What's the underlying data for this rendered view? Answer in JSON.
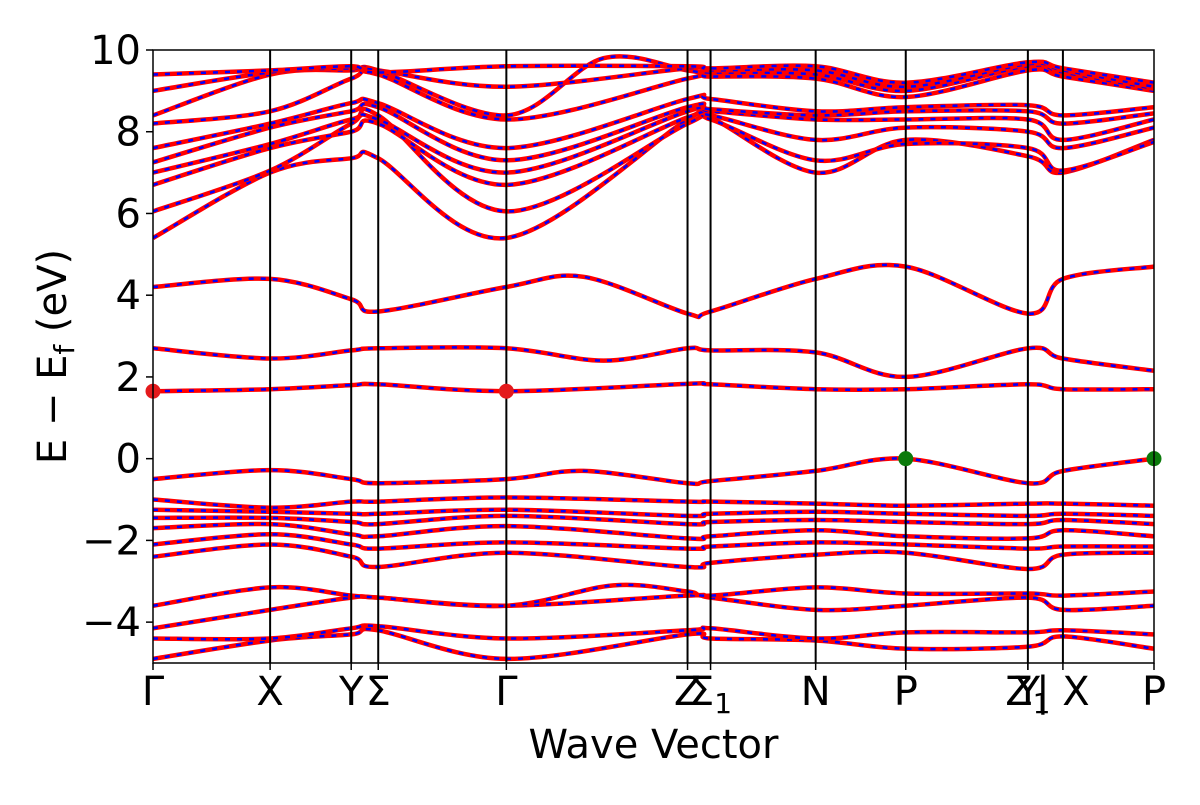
{
  "chart_data": {
    "type": "line",
    "title": "",
    "xlabel": "Wave Vector",
    "ylabel": "E − E_f (eV)",
    "ylabel_parts": {
      "main": "E − E",
      "sub": "f",
      "unit": "(eV)"
    },
    "ylim": [
      -5,
      10
    ],
    "xlim": [
      0,
      10
    ],
    "yticks": [
      -4,
      -2,
      0,
      2,
      4,
      6,
      8,
      10
    ],
    "ytick_labels": [
      "−4",
      "−2",
      "0",
      "2",
      "4",
      "6",
      "8",
      "10"
    ],
    "kpoints": [
      {
        "x": 0.0,
        "label": "Γ",
        "sub": ""
      },
      {
        "x": 1.17,
        "label": "X",
        "sub": ""
      },
      {
        "x": 1.98,
        "label": "Y",
        "sub": ""
      },
      {
        "x": 2.25,
        "label": "Σ",
        "sub": ""
      },
      {
        "x": 3.53,
        "label": "Γ",
        "sub": ""
      },
      {
        "x": 5.34,
        "label": "Z",
        "sub": ""
      },
      {
        "x": 5.57,
        "label": "Σ",
        "sub": "1"
      },
      {
        "x": 6.62,
        "label": "N",
        "sub": ""
      },
      {
        "x": 7.52,
        "label": "P",
        "sub": ""
      },
      {
        "x": 8.74,
        "label": "Y",
        "sub": ""
      },
      {
        "x": 8.74,
        "label": "Z",
        "sub": "1"
      },
      {
        "x": 9.09,
        "label": "| X",
        "sub": ""
      },
      {
        "x": 10.0,
        "label": "P",
        "sub": ""
      }
    ],
    "series": [
      {
        "color_main": "#ff0000",
        "color_overlay": "#0000ff",
        "style": "spin-up solid / spin-down dashed overlay"
      }
    ],
    "bands": [
      [
        [
          0,
          -4.9
        ],
        [
          1.17,
          -4.45
        ],
        [
          1.98,
          -4.3
        ],
        [
          2.25,
          -4.2
        ],
        [
          3.53,
          -4.9
        ],
        [
          5.34,
          -4.3
        ],
        [
          5.57,
          -4.4
        ],
        [
          6.62,
          -4.45
        ],
        [
          7.52,
          -4.65
        ],
        [
          8.74,
          -4.6
        ],
        [
          9.09,
          -4.35
        ],
        [
          10,
          -4.65
        ]
      ],
      [
        [
          0,
          -4.4
        ],
        [
          1.17,
          -4.4
        ],
        [
          1.98,
          -4.15
        ],
        [
          2.25,
          -4.1
        ],
        [
          3.53,
          -4.4
        ],
        [
          5.34,
          -4.2
        ],
        [
          5.57,
          -4.15
        ],
        [
          6.62,
          -4.4
        ],
        [
          7.52,
          -4.25
        ],
        [
          8.74,
          -4.25
        ],
        [
          9.09,
          -4.2
        ],
        [
          10,
          -4.3
        ]
      ],
      [
        [
          0,
          -4.15
        ],
        [
          1.17,
          -3.7
        ],
        [
          1.98,
          -3.4
        ],
        [
          2.25,
          -3.4
        ],
        [
          3.53,
          -3.6
        ],
        [
          5.34,
          -3.35
        ],
        [
          5.57,
          -3.4
        ],
        [
          6.62,
          -3.7
        ],
        [
          7.52,
          -3.6
        ],
        [
          8.74,
          -3.4
        ],
        [
          9.09,
          -3.7
        ],
        [
          10,
          -3.6
        ]
      ],
      [
        [
          0,
          -3.6
        ],
        [
          1.17,
          -3.15
        ],
        [
          1.98,
          -3.35
        ],
        [
          2.25,
          -3.4
        ],
        [
          3.53,
          -3.6
        ],
        [
          4.6,
          -3.1
        ],
        [
          5.34,
          -3.25
        ],
        [
          5.57,
          -3.35
        ],
        [
          6.62,
          -3.15
        ],
        [
          7.52,
          -3.3
        ],
        [
          8.74,
          -3.3
        ],
        [
          9.09,
          -3.35
        ],
        [
          10,
          -3.25
        ]
      ],
      [
        [
          0,
          -2.4
        ],
        [
          1.17,
          -2.1
        ],
        [
          1.98,
          -2.4
        ],
        [
          2.25,
          -2.65
        ],
        [
          3.53,
          -2.3
        ],
        [
          5.34,
          -2.65
        ],
        [
          5.57,
          -2.55
        ],
        [
          6.62,
          -2.35
        ],
        [
          7.52,
          -2.3
        ],
        [
          8.74,
          -2.7
        ],
        [
          9.09,
          -2.35
        ],
        [
          10,
          -2.3
        ]
      ],
      [
        [
          0,
          -2.1
        ],
        [
          1.17,
          -1.85
        ],
        [
          1.98,
          -2.1
        ],
        [
          2.25,
          -2.2
        ],
        [
          3.53,
          -2.05
        ],
        [
          5.34,
          -2.2
        ],
        [
          5.57,
          -2.15
        ],
        [
          6.62,
          -2.05
        ],
        [
          7.52,
          -2.1
        ],
        [
          8.74,
          -2.2
        ],
        [
          9.09,
          -2.15
        ],
        [
          10,
          -2.15
        ]
      ],
      [
        [
          0,
          -1.7
        ],
        [
          1.17,
          -1.6
        ],
        [
          1.98,
          -1.85
        ],
        [
          2.25,
          -1.9
        ],
        [
          3.53,
          -1.65
        ],
        [
          5.34,
          -1.95
        ],
        [
          5.57,
          -1.9
        ],
        [
          6.62,
          -1.75
        ],
        [
          7.52,
          -1.9
        ],
        [
          8.74,
          -1.95
        ],
        [
          9.09,
          -1.75
        ],
        [
          10,
          -1.9
        ]
      ],
      [
        [
          0,
          -1.45
        ],
        [
          1.17,
          -1.45
        ],
        [
          1.98,
          -1.55
        ],
        [
          2.25,
          -1.6
        ],
        [
          3.53,
          -1.4
        ],
        [
          5.34,
          -1.6
        ],
        [
          5.57,
          -1.55
        ],
        [
          6.62,
          -1.5
        ],
        [
          7.52,
          -1.55
        ],
        [
          8.74,
          -1.6
        ],
        [
          9.09,
          -1.5
        ],
        [
          10,
          -1.6
        ]
      ],
      [
        [
          0,
          -1.25
        ],
        [
          1.17,
          -1.3
        ],
        [
          1.98,
          -1.35
        ],
        [
          2.25,
          -1.35
        ],
        [
          3.53,
          -1.25
        ],
        [
          5.34,
          -1.4
        ],
        [
          5.57,
          -1.35
        ],
        [
          6.62,
          -1.3
        ],
        [
          7.52,
          -1.35
        ],
        [
          8.74,
          -1.4
        ],
        [
          9.09,
          -1.35
        ],
        [
          10,
          -1.4
        ]
      ],
      [
        [
          0,
          -1.0
        ],
        [
          1.17,
          -1.2
        ],
        [
          1.98,
          -1.05
        ],
        [
          2.25,
          -1.05
        ],
        [
          3.53,
          -0.95
        ],
        [
          5.34,
          -1.05
        ],
        [
          5.57,
          -1.05
        ],
        [
          6.62,
          -1.1
        ],
        [
          7.52,
          -1.15
        ],
        [
          8.74,
          -1.1
        ],
        [
          9.09,
          -1.1
        ],
        [
          10,
          -1.15
        ]
      ],
      [
        [
          0,
          -0.5
        ],
        [
          1.17,
          -0.28
        ],
        [
          1.98,
          -0.5
        ],
        [
          2.25,
          -0.6
        ],
        [
          3.53,
          -0.5
        ],
        [
          4.3,
          -0.3
        ],
        [
          5.34,
          -0.6
        ],
        [
          5.57,
          -0.55
        ],
        [
          6.62,
          -0.3
        ],
        [
          7.52,
          0.0
        ],
        [
          8.74,
          -0.6
        ],
        [
          9.09,
          -0.3
        ],
        [
          10,
          0.0
        ]
      ],
      [
        [
          0,
          1.65
        ],
        [
          1.17,
          1.7
        ],
        [
          1.98,
          1.8
        ],
        [
          2.25,
          1.82
        ],
        [
          3.53,
          1.65
        ],
        [
          5.34,
          1.83
        ],
        [
          5.57,
          1.82
        ],
        [
          6.62,
          1.7
        ],
        [
          7.52,
          1.7
        ],
        [
          8.74,
          1.82
        ],
        [
          9.09,
          1.7
        ],
        [
          10,
          1.7
        ]
      ],
      [
        [
          0,
          2.7
        ],
        [
          1.17,
          2.45
        ],
        [
          1.98,
          2.65
        ],
        [
          2.25,
          2.7
        ],
        [
          3.53,
          2.7
        ],
        [
          4.5,
          2.4
        ],
        [
          5.34,
          2.7
        ],
        [
          5.57,
          2.65
        ],
        [
          6.62,
          2.6
        ],
        [
          7.52,
          2.0
        ],
        [
          8.74,
          2.7
        ],
        [
          9.09,
          2.45
        ],
        [
          10,
          2.15
        ]
      ],
      [
        [
          0,
          4.2
        ],
        [
          1.17,
          4.4
        ],
        [
          1.98,
          3.9
        ],
        [
          2.25,
          3.6
        ],
        [
          3.53,
          4.2
        ],
        [
          4.3,
          4.45
        ],
        [
          5.34,
          3.55
        ],
        [
          5.57,
          3.6
        ],
        [
          6.62,
          4.4
        ],
        [
          7.52,
          4.7
        ],
        [
          8.74,
          3.55
        ],
        [
          9.09,
          4.4
        ],
        [
          10,
          4.7
        ]
      ],
      [
        [
          0,
          5.4
        ],
        [
          1.17,
          7.0
        ],
        [
          1.98,
          7.35
        ],
        [
          2.25,
          7.35
        ],
        [
          3.53,
          5.4
        ],
        [
          5.34,
          8.3
        ],
        [
          5.57,
          8.35
        ],
        [
          6.62,
          7.0
        ],
        [
          7.52,
          7.8
        ],
        [
          8.74,
          7.4
        ],
        [
          9.09,
          7.0
        ],
        [
          10,
          7.8
        ]
      ],
      [
        [
          0,
          6.05
        ],
        [
          1.17,
          7.05
        ],
        [
          1.98,
          8.2
        ],
        [
          2.25,
          8.4
        ],
        [
          3.53,
          6.05
        ],
        [
          5.34,
          8.2
        ],
        [
          5.57,
          8.3
        ],
        [
          6.62,
          7.3
        ],
        [
          7.52,
          7.7
        ],
        [
          8.74,
          7.6
        ],
        [
          9.09,
          7.05
        ],
        [
          10,
          7.75
        ]
      ],
      [
        [
          0,
          6.7
        ],
        [
          1.17,
          7.6
        ],
        [
          1.98,
          8.0
        ],
        [
          2.25,
          8.2
        ],
        [
          3.53,
          6.7
        ],
        [
          5.34,
          8.35
        ],
        [
          5.57,
          8.4
        ],
        [
          6.62,
          7.8
        ],
        [
          7.52,
          8.1
        ],
        [
          8.74,
          8.0
        ],
        [
          9.09,
          7.6
        ],
        [
          10,
          8.1
        ]
      ],
      [
        [
          0,
          7.0
        ],
        [
          1.17,
          7.7
        ],
        [
          1.98,
          8.3
        ],
        [
          2.25,
          8.3
        ],
        [
          3.53,
          7.0
        ],
        [
          5.34,
          8.5
        ],
        [
          5.57,
          8.5
        ],
        [
          6.62,
          8.3
        ],
        [
          7.52,
          8.3
        ],
        [
          8.74,
          8.3
        ],
        [
          9.09,
          7.8
        ],
        [
          10,
          8.3
        ]
      ],
      [
        [
          0,
          7.25
        ],
        [
          1.17,
          8.1
        ],
        [
          1.98,
          8.5
        ],
        [
          2.25,
          8.6
        ],
        [
          3.53,
          7.3
        ],
        [
          5.34,
          8.6
        ],
        [
          5.57,
          8.55
        ],
        [
          6.62,
          8.4
        ],
        [
          7.52,
          8.5
        ],
        [
          8.74,
          8.5
        ],
        [
          9.09,
          8.2
        ],
        [
          10,
          8.45
        ]
      ],
      [
        [
          0,
          7.6
        ],
        [
          1.17,
          8.2
        ],
        [
          1.98,
          8.7
        ],
        [
          2.25,
          8.7
        ],
        [
          3.53,
          7.6
        ],
        [
          5.34,
          8.8
        ],
        [
          5.57,
          8.8
        ],
        [
          6.62,
          8.5
        ],
        [
          7.52,
          8.6
        ],
        [
          8.74,
          8.65
        ],
        [
          9.09,
          8.4
        ],
        [
          10,
          8.6
        ]
      ],
      [
        [
          0,
          8.2
        ],
        [
          1.17,
          8.5
        ],
        [
          1.98,
          9.3
        ],
        [
          2.25,
          9.4
        ],
        [
          3.53,
          8.3
        ],
        [
          5.34,
          9.3
        ],
        [
          5.57,
          9.35
        ],
        [
          6.62,
          9.3
        ],
        [
          7.52,
          8.85
        ],
        [
          8.74,
          9.5
        ],
        [
          9.09,
          9.35
        ],
        [
          10,
          9.0
        ]
      ],
      [
        [
          0,
          8.4
        ],
        [
          1.17,
          9.4
        ],
        [
          1.98,
          9.5
        ],
        [
          2.25,
          9.5
        ],
        [
          3.53,
          8.4
        ],
        [
          4.5,
          9.8
        ],
        [
          5.34,
          9.5
        ],
        [
          5.57,
          9.45
        ],
        [
          6.62,
          9.4
        ],
        [
          7.52,
          9.0
        ],
        [
          8.74,
          9.6
        ],
        [
          9.09,
          9.45
        ],
        [
          10,
          9.05
        ]
      ],
      [
        [
          0,
          9.0
        ],
        [
          1.17,
          9.45
        ],
        [
          1.98,
          9.55
        ],
        [
          2.25,
          9.5
        ],
        [
          3.53,
          9.1
        ],
        [
          5.34,
          9.55
        ],
        [
          5.57,
          9.5
        ],
        [
          6.62,
          9.5
        ],
        [
          7.52,
          9.1
        ],
        [
          8.74,
          9.65
        ],
        [
          9.09,
          9.5
        ],
        [
          10,
          9.1
        ]
      ],
      [
        [
          0,
          9.4
        ],
        [
          1.17,
          9.5
        ],
        [
          1.98,
          9.6
        ],
        [
          2.25,
          9.45
        ],
        [
          3.53,
          9.6
        ],
        [
          5.34,
          9.6
        ],
        [
          5.57,
          9.55
        ],
        [
          6.62,
          9.6
        ],
        [
          7.52,
          9.2
        ],
        [
          8.74,
          9.7
        ],
        [
          9.09,
          9.55
        ],
        [
          10,
          9.2
        ]
      ]
    ],
    "markers": [
      {
        "x": 0.0,
        "y": 1.65,
        "color": "#e41a1c",
        "meaning": "CBM"
      },
      {
        "x": 3.53,
        "y": 1.65,
        "color": "#e41a1c",
        "meaning": "CBM"
      },
      {
        "x": 7.52,
        "y": 0.0,
        "color": "#0b7a0b",
        "meaning": "VBM"
      },
      {
        "x": 10.0,
        "y": 0.0,
        "color": "#0b7a0b",
        "meaning": "VBM"
      }
    ],
    "grid": false,
    "legend": "none"
  }
}
